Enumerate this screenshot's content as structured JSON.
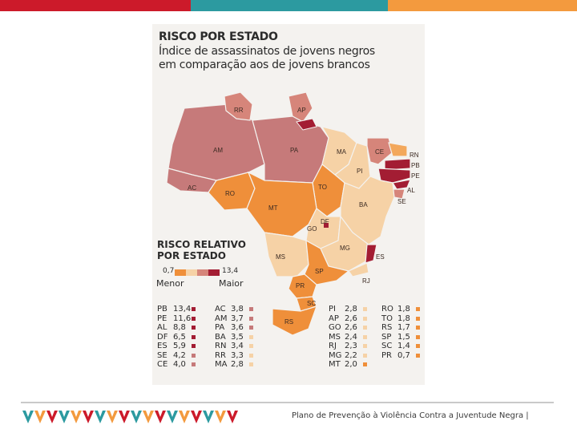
{
  "colors": {
    "bar": [
      "#cc1a2a",
      "#2c9aa0",
      "#f39a3e"
    ],
    "low": "#f6d2a6",
    "mid_low": "#f3a85c",
    "mid": "#ef8f3a",
    "mid_high": "#d6857a",
    "high": "#c67a7a",
    "very_high": "#a31d33",
    "panel": "#f4f2ef"
  },
  "title": "RISCO POR ESTADO",
  "subtitle_line1": "Índice de assassinatos de jovens negros",
  "subtitle_line2": "em comparação aos de jovens brancos",
  "relative_title_line1": "RISCO RELATIVO",
  "relative_title_line2": "POR ESTADO",
  "scale": {
    "min": "0,7",
    "max": "13,4",
    "min_label": "Menor",
    "max_label": "Maior"
  },
  "map_labels": [
    "RR",
    "AP",
    "AM",
    "PA",
    "MA",
    "CE",
    "RN",
    "PB",
    "PE",
    "PI",
    "AL",
    "SE",
    "AC",
    "RO",
    "TO",
    "BA",
    "MT",
    "DF",
    "GO",
    "MG",
    "ES",
    "MS",
    "SP",
    "RJ",
    "PR",
    "SC",
    "RS"
  ],
  "legend_columns": [
    [
      {
        "code": "PB",
        "value": "13,4",
        "color": "#a31d33"
      },
      {
        "code": "PE",
        "value": "11,6",
        "color": "#a31d33"
      },
      {
        "code": "AL",
        "value": "8,8",
        "color": "#a31d33"
      },
      {
        "code": "DF",
        "value": "6,5",
        "color": "#a31d33"
      },
      {
        "code": "ES",
        "value": "5,9",
        "color": "#a31d33"
      },
      {
        "code": "SE",
        "value": "4,2",
        "color": "#c67a7a"
      },
      {
        "code": "CE",
        "value": "4,0",
        "color": "#c67a7a"
      }
    ],
    [
      {
        "code": "AC",
        "value": "3,8",
        "color": "#c67a7a"
      },
      {
        "code": "AM",
        "value": "3,7",
        "color": "#c67a7a"
      },
      {
        "code": "PA",
        "value": "3,6",
        "color": "#c67a7a"
      },
      {
        "code": "BA",
        "value": "3,5",
        "color": "#f6d2a6"
      },
      {
        "code": "RN",
        "value": "3,4",
        "color": "#f6d2a6"
      },
      {
        "code": "RR",
        "value": "3,3",
        "color": "#f6d2a6"
      },
      {
        "code": "MA",
        "value": "2,8",
        "color": "#f6d2a6"
      }
    ],
    [
      {
        "code": "PI",
        "value": "2,8",
        "color": "#f6d2a6"
      },
      {
        "code": "AP",
        "value": "2,6",
        "color": "#f6d2a6"
      },
      {
        "code": "GO",
        "value": "2,6",
        "color": "#f6d2a6"
      },
      {
        "code": "MS",
        "value": "2,4",
        "color": "#f6d2a6"
      },
      {
        "code": "RJ",
        "value": "2,3",
        "color": "#f6d2a6"
      },
      {
        "code": "MG",
        "value": "2,2",
        "color": "#f6d2a6"
      },
      {
        "code": "MT",
        "value": "2,0",
        "color": "#ef8f3a"
      }
    ],
    [
      {
        "code": "RO",
        "value": "1,8",
        "color": "#ef8f3a"
      },
      {
        "code": "TO",
        "value": "1,8",
        "color": "#ef8f3a"
      },
      {
        "code": "RS",
        "value": "1,7",
        "color": "#ef8f3a"
      },
      {
        "code": "SP",
        "value": "1,5",
        "color": "#ef8f3a"
      },
      {
        "code": "SC",
        "value": "1,4",
        "color": "#ef8f3a"
      },
      {
        "code": "PR",
        "value": "0,7",
        "color": "#ef8f3a"
      }
    ]
  ],
  "footer": "Plano de Prevenção à Violência Contra a Juventude Negra  |"
}
